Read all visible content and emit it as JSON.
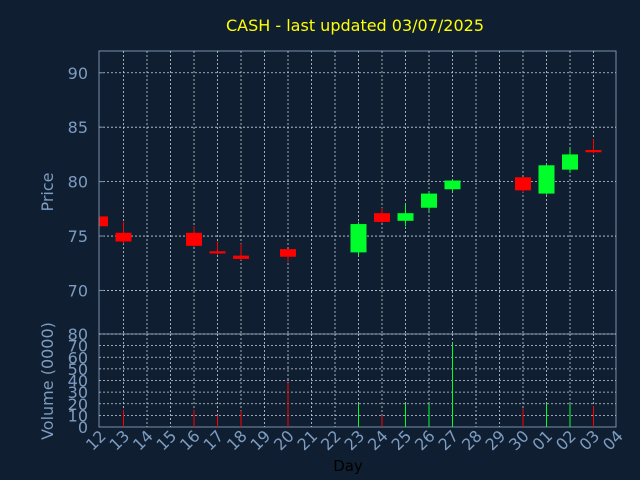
{
  "chart_data": {
    "type": "candlestick",
    "title": "CASH - last updated 03/07/2025",
    "xlabel": "Day",
    "price_panel": {
      "ylabel": "Price",
      "ylim": [
        66,
        92
      ],
      "yticks": [
        70,
        75,
        80,
        85,
        90
      ],
      "grid": true
    },
    "volume_panel": {
      "ylabel": "Volume (0000)",
      "ylim": [
        0,
        80
      ],
      "yticks": [
        0,
        10,
        20,
        30,
        40,
        50,
        60,
        70,
        80
      ],
      "grid": true
    },
    "x_ticks": [
      "12",
      "13",
      "14",
      "15",
      "16",
      "17",
      "18",
      "19",
      "20",
      "21",
      "22",
      "23",
      "24",
      "25",
      "26",
      "27",
      "28",
      "29",
      "30",
      "01",
      "02",
      "03",
      "04"
    ],
    "candles": [
      {
        "day": "12",
        "open": 76.8,
        "high": 76.8,
        "low": 75.9,
        "close": 75.9,
        "volume": 0
      },
      {
        "day": "13",
        "open": 75.3,
        "high": 76.3,
        "low": 74.3,
        "close": 74.5,
        "volume": 15
      },
      {
        "day": "16",
        "open": 75.3,
        "high": 75.9,
        "low": 74.0,
        "close": 74.1,
        "volume": 15
      },
      {
        "day": "17",
        "open": 73.6,
        "high": 74.5,
        "low": 73.3,
        "close": 73.4,
        "volume": 10
      },
      {
        "day": "18",
        "open": 73.2,
        "high": 74.3,
        "low": 72.8,
        "close": 72.9,
        "volume": 14
      },
      {
        "day": "20",
        "open": 73.8,
        "high": 73.8,
        "low": 72.6,
        "close": 73.1,
        "volume": 38
      },
      {
        "day": "23",
        "open": 73.5,
        "high": 76.3,
        "low": 73.2,
        "close": 76.1,
        "volume": 20
      },
      {
        "day": "24",
        "open": 77.1,
        "high": 77.6,
        "low": 76.2,
        "close": 76.3,
        "volume": 10
      },
      {
        "day": "25",
        "open": 76.4,
        "high": 77.9,
        "low": 75.9,
        "close": 77.1,
        "volume": 20
      },
      {
        "day": "26",
        "open": 77.6,
        "high": 79.1,
        "low": 77.3,
        "close": 78.9,
        "volume": 20
      },
      {
        "day": "27",
        "open": 79.3,
        "high": 80.2,
        "low": 79.1,
        "close": 80.1,
        "volume": 72
      },
      {
        "day": "30",
        "open": 80.4,
        "high": 80.4,
        "low": 79.0,
        "close": 79.2,
        "volume": 16
      },
      {
        "day": "01",
        "open": 78.9,
        "high": 81.6,
        "low": 78.8,
        "close": 81.5,
        "volume": 20
      },
      {
        "day": "02",
        "open": 81.1,
        "high": 83.1,
        "low": 80.8,
        "close": 82.5,
        "volume": 20
      },
      {
        "day": "03",
        "open": 82.9,
        "high": 83.9,
        "low": 82.6,
        "close": 82.7,
        "volume": 18
      }
    ],
    "colors": {
      "up": "#00ff2a",
      "down": "#ff0000",
      "background": "#0f1f31",
      "frame": "#7a8fa8",
      "grid": "#c8d0da",
      "title": "#ffff00",
      "axis_text": "#7e9cc0",
      "xlabel_text": "#000000"
    }
  }
}
